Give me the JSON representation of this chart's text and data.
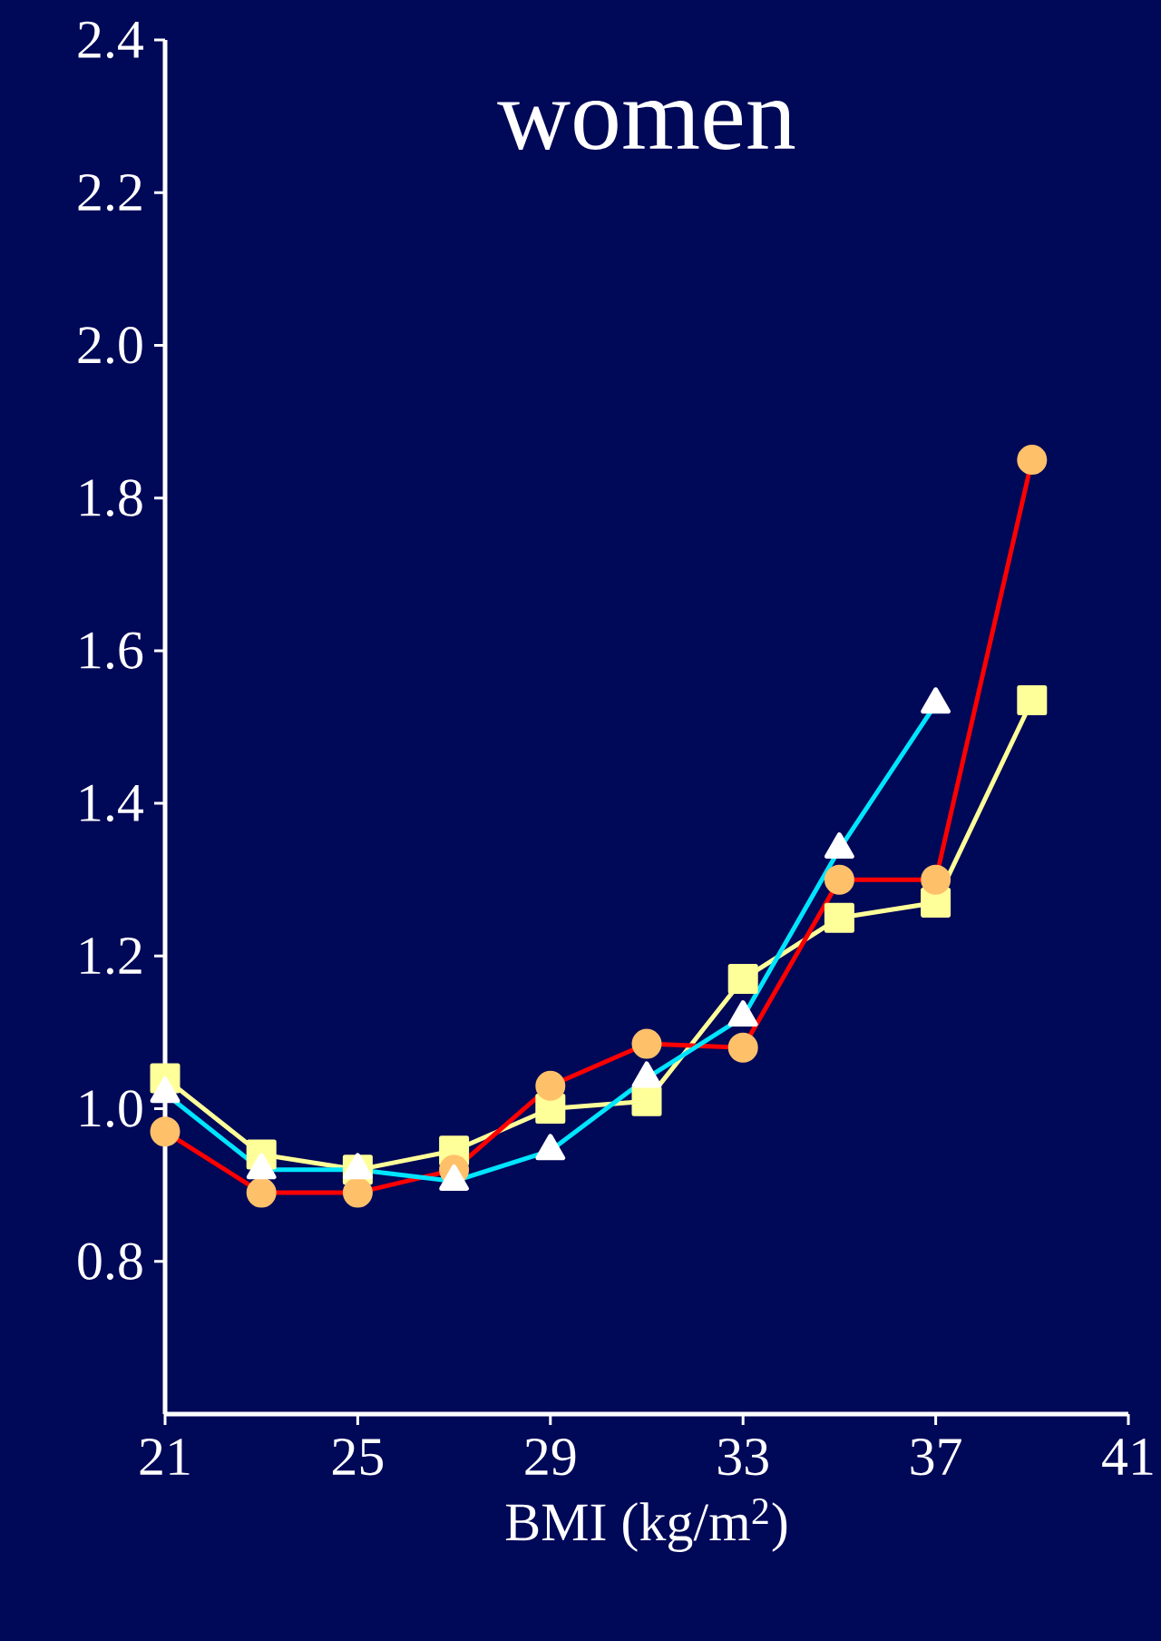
{
  "chart_data": {
    "type": "line",
    "title": "women",
    "xlabel": "BMI (kg/m$^{2}$)",
    "x": [
      21,
      23,
      25,
      27,
      29,
      31,
      33,
      35,
      37,
      39
    ],
    "series": [
      {
        "color": "#ffff99",
        "marker": "square",
        "values": [
          1.04,
          0.94,
          0.92,
          0.945,
          1.0,
          1.01,
          1.17,
          1.25,
          1.27,
          1.535
        ]
      },
      {
        "color": "#ff0000",
        "colors": [
          "#ffc06a",
          "#ffc06a",
          "#ffc06a",
          "#ffc06a",
          "#ffc06a",
          "#ffc06a",
          "#ffc06a",
          "#ffc06a",
          "#ffc06a",
          "#ffc06a"
        ],
        "marker": "circle",
        "values": [
          0.97,
          0.89,
          0.89,
          0.92,
          1.03,
          1.085,
          1.08,
          1.3,
          1.3,
          1.85
        ]
      },
      {
        "color": "#00e5ff",
        "colors": [
          "#ffffff",
          "#ffffff",
          "#ffffff",
          "#ffffff",
          "#ffffff",
          "#ffffff",
          "#ffffff",
          "#ffffff",
          "#ffffff"
        ],
        "marker": "triangle",
        "x": [
          21,
          23,
          25,
          27,
          29,
          31,
          33,
          35,
          37
        ],
        "values": [
          1.02,
          0.92,
          0.92,
          0.905,
          0.945,
          1.04,
          1.12,
          1.34,
          1.53
        ]
      }
    ],
    "xlim": [
      21,
      41
    ],
    "xticks": [
      21,
      25,
      29,
      33,
      37,
      41
    ],
    "ylim": [
      0.6,
      2.4
    ],
    "yticks": [
      0.8,
      {
        "value": 1.0,
        "label": "1.0"
      },
      1.2,
      1.4,
      1.6,
      1.8,
      {
        "value": 2.0,
        "label": "2.0"
      },
      2.2,
      2.4
    ],
    "grid": false,
    "line_style": "solid"
  }
}
